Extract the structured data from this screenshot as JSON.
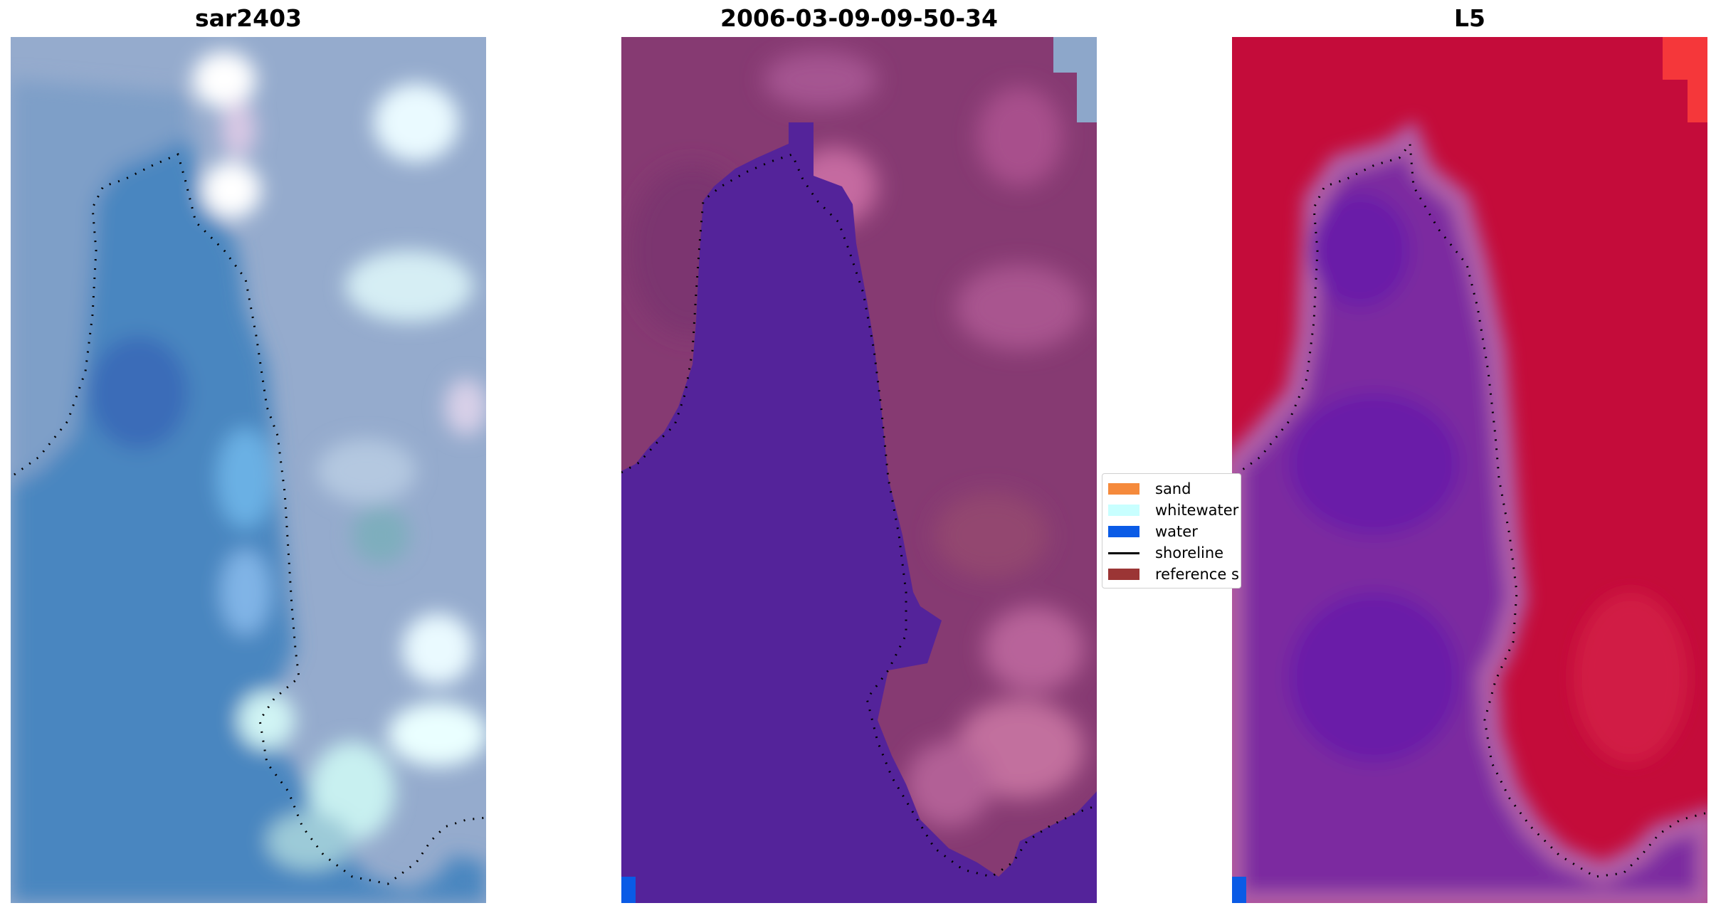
{
  "panels": [
    {
      "title": "sar2403",
      "image": "rgb-satellite-image"
    },
    {
      "title": "2006-03-09-09-50-34",
      "image": "classified-image"
    },
    {
      "title": "L5",
      "image": "mndwi-image"
    }
  ],
  "legend": {
    "items": [
      {
        "label": "sand",
        "color": "#f58a3c",
        "type": "patch"
      },
      {
        "label": "whitewater",
        "color": "#c8ffff",
        "type": "patch"
      },
      {
        "label": "water",
        "color": "#0a5be6",
        "type": "patch"
      },
      {
        "label": "shoreline",
        "color": "#000000",
        "type": "line"
      },
      {
        "label": "reference s",
        "color": "#9b3535",
        "type": "patch"
      }
    ]
  },
  "colors": {
    "rgb_water": "#4f84bd",
    "rgb_land": "#9fb0cf",
    "class_water": "#54239a",
    "class_land": "#86386f",
    "index_water": "#6a1aa8",
    "index_land": "#c30c3a",
    "shoreline": "#000000"
  }
}
